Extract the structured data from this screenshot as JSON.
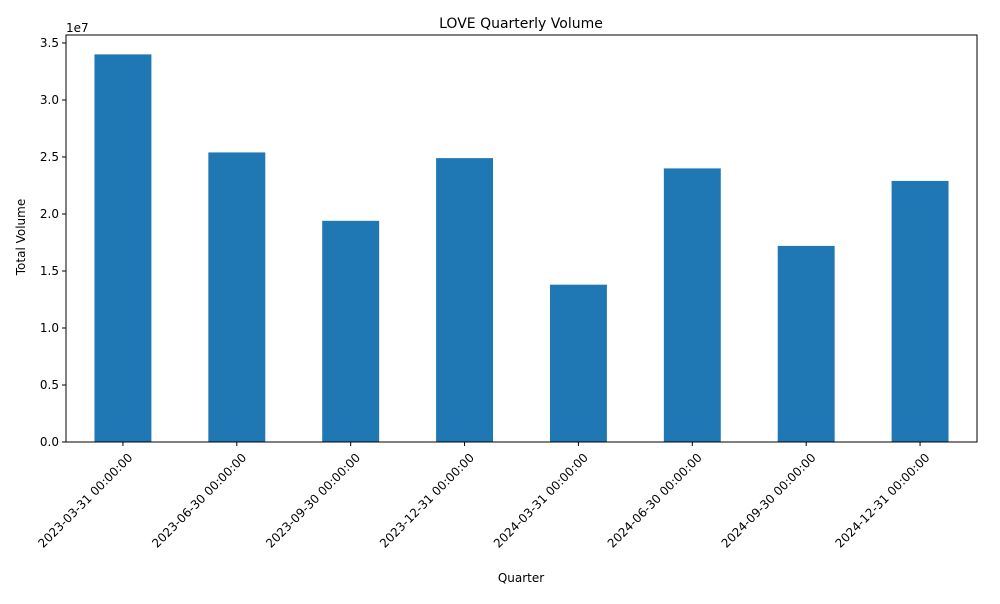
{
  "chart_data": {
    "type": "bar",
    "title": "LOVE Quarterly Volume",
    "xlabel": "Quarter",
    "ylabel": "Total Volume",
    "offset_label": "1e7",
    "categories": [
      "2023-03-31 00:00:00",
      "2023-06-30 00:00:00",
      "2023-09-30 00:00:00",
      "2023-12-31 00:00:00",
      "2024-03-31 00:00:00",
      "2024-06-30 00:00:00",
      "2024-09-30 00:00:00",
      "2024-12-31 00:00:00"
    ],
    "values": [
      34000000,
      25400000,
      19400000,
      24900000,
      13800000,
      24000000,
      17200000,
      22900000
    ],
    "ylim": [
      0,
      35700000
    ],
    "yticks": [
      0,
      5000000,
      10000000,
      15000000,
      20000000,
      25000000,
      30000000,
      35000000
    ],
    "ytick_labels": [
      "0.0",
      "0.5",
      "1.0",
      "1.5",
      "2.0",
      "2.5",
      "3.0",
      "3.5"
    ],
    "bar_color": "#1f77b4",
    "grid": false,
    "legend": "none"
  }
}
